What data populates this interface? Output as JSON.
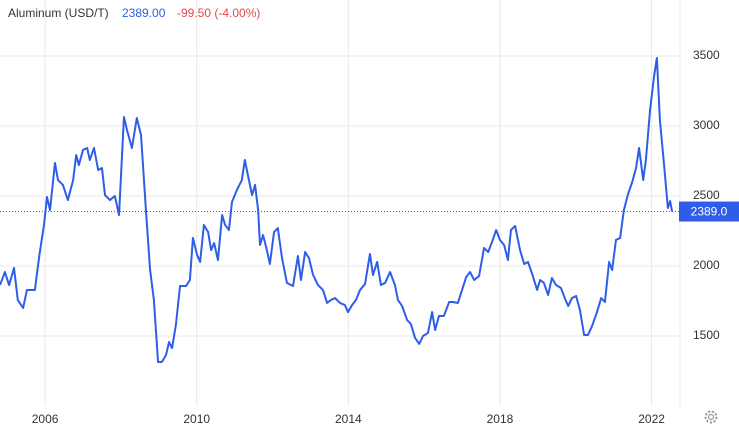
{
  "chart_data": {
    "type": "line",
    "title": "Aluminum (USD/T)",
    "price": "2389.00",
    "change": "-99.50 (-4.00%)",
    "last_value": {
      "value": 2389,
      "label": "2389.0"
    },
    "xlim": [
      2004.81,
      2022.75
    ],
    "ylim": [
      1000,
      3900
    ],
    "xticks": [
      2006,
      2010,
      2014,
      2018,
      2022
    ],
    "yticks": [
      1500,
      2000,
      2500,
      3000,
      3500
    ],
    "grid": true,
    "series": [
      {
        "name": "Aluminum",
        "color": "#2e5ee8",
        "x": [
          2004.81,
          2004.94,
          2005.05,
          2005.18,
          2005.28,
          2005.42,
          2005.52,
          2005.73,
          2005.85,
          2005.97,
          2006.05,
          2006.13,
          2006.26,
          2006.34,
          2006.47,
          2006.6,
          2006.74,
          2006.82,
          2006.89,
          2007.0,
          2007.11,
          2007.18,
          2007.29,
          2007.4,
          2007.5,
          2007.58,
          2007.71,
          2007.84,
          2007.95,
          2008.08,
          2008.16,
          2008.29,
          2008.42,
          2008.53,
          2008.66,
          2008.77,
          2008.87,
          2008.98,
          2009.08,
          2009.19,
          2009.27,
          2009.35,
          2009.45,
          2009.56,
          2009.72,
          2009.82,
          2009.9,
          2010.01,
          2010.09,
          2010.19,
          2010.3,
          2010.38,
          2010.46,
          2010.56,
          2010.67,
          2010.75,
          2010.85,
          2010.93,
          2011.06,
          2011.19,
          2011.27,
          2011.35,
          2011.46,
          2011.54,
          2011.62,
          2011.67,
          2011.75,
          2011.85,
          2011.93,
          2012.04,
          2012.14,
          2012.25,
          2012.38,
          2012.54,
          2012.67,
          2012.75,
          2012.86,
          2012.96,
          2013.07,
          2013.2,
          2013.33,
          2013.44,
          2013.54,
          2013.65,
          2013.78,
          2013.91,
          2013.99,
          2014.1,
          2014.2,
          2014.31,
          2014.44,
          2014.57,
          2014.65,
          2014.76,
          2014.86,
          2014.97,
          2015.1,
          2015.23,
          2015.31,
          2015.42,
          2015.55,
          2015.65,
          2015.76,
          2015.87,
          2015.97,
          2016.1,
          2016.21,
          2016.29,
          2016.39,
          2016.52,
          2016.66,
          2016.76,
          2016.89,
          2017.0,
          2017.11,
          2017.21,
          2017.32,
          2017.45,
          2017.58,
          2017.69,
          2017.79,
          2017.9,
          2018.0,
          2018.11,
          2018.21,
          2018.29,
          2018.4,
          2018.53,
          2018.64,
          2018.74,
          2018.85,
          2018.98,
          2019.06,
          2019.16,
          2019.27,
          2019.37,
          2019.48,
          2019.61,
          2019.72,
          2019.8,
          2019.9,
          2020.01,
          2020.11,
          2020.22,
          2020.32,
          2020.43,
          2020.56,
          2020.67,
          2020.77,
          2020.88,
          2020.96,
          2021.06,
          2021.17,
          2021.27,
          2021.38,
          2021.49,
          2021.59,
          2021.67,
          2021.78,
          2021.85,
          2021.96,
          2022.07,
          2022.14,
          2022.22,
          2022.33,
          2022.43,
          2022.49,
          2022.54
        ],
        "values": [
          1864,
          1957,
          1864,
          1986,
          1757,
          1700,
          1829,
          1829,
          2079,
          2293,
          2493,
          2400,
          2736,
          2614,
          2579,
          2471,
          2614,
          2793,
          2721,
          2829,
          2843,
          2757,
          2843,
          2686,
          2700,
          2507,
          2471,
          2500,
          2364,
          3064,
          2971,
          2843,
          3057,
          2936,
          2400,
          1971,
          1757,
          1314,
          1314,
          1364,
          1457,
          1414,
          1579,
          1857,
          1857,
          1900,
          2200,
          2079,
          2029,
          2293,
          2243,
          2114,
          2164,
          2043,
          2364,
          2293,
          2257,
          2457,
          2543,
          2614,
          2757,
          2650,
          2507,
          2579,
          2400,
          2150,
          2221,
          2114,
          2014,
          2243,
          2271,
          2057,
          1879,
          1857,
          2071,
          1900,
          2100,
          2057,
          1936,
          1864,
          1829,
          1736,
          1757,
          1771,
          1736,
          1721,
          1671,
          1721,
          1757,
          1829,
          1871,
          2086,
          1936,
          2029,
          1864,
          1879,
          1957,
          1864,
          1757,
          1714,
          1614,
          1586,
          1486,
          1443,
          1500,
          1521,
          1671,
          1543,
          1643,
          1643,
          1743,
          1743,
          1736,
          1829,
          1921,
          1957,
          1900,
          1929,
          2129,
          2100,
          2171,
          2257,
          2186,
          2150,
          2043,
          2257,
          2286,
          2114,
          2014,
          2029,
          1943,
          1829,
          1900,
          1879,
          1793,
          1914,
          1864,
          1843,
          1764,
          1714,
          1771,
          1786,
          1686,
          1507,
          1507,
          1571,
          1671,
          1771,
          1743,
          2029,
          1971,
          2186,
          2200,
          2400,
          2514,
          2600,
          2700,
          2843,
          2614,
          2757,
          3114,
          3364,
          3486,
          3043,
          2721,
          2414,
          2464,
          2389
        ]
      }
    ]
  }
}
